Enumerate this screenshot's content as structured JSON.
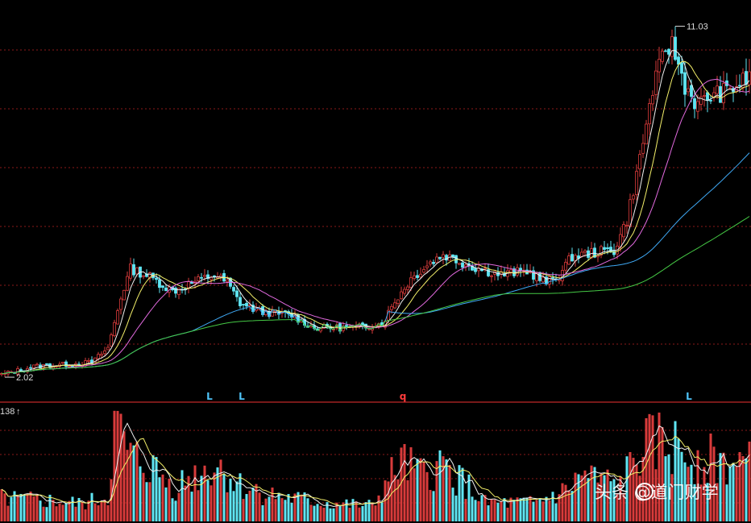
{
  "chart_data": {
    "type": "candlestick",
    "high_label": "11.03",
    "low_label": "2.02",
    "volume_label": "138",
    "markers": [
      {
        "text": "L",
        "color": "#4fc3f7"
      },
      {
        "text": "L",
        "color": "#4fc3f7"
      },
      {
        "text": "q",
        "color": "#ff3b3b"
      },
      {
        "text": "L",
        "color": "#4fc3f7"
      }
    ],
    "price_range": [
      1.9,
      11.3
    ],
    "price_anchors": [
      [
        0,
        2.3
      ],
      [
        10,
        2.5
      ],
      [
        20,
        2.55
      ],
      [
        28,
        2.6
      ],
      [
        33,
        2.95
      ],
      [
        37,
        4.2
      ],
      [
        40,
        4.9
      ],
      [
        46,
        4.7
      ],
      [
        53,
        4.35
      ],
      [
        59,
        4.55
      ],
      [
        66,
        4.75
      ],
      [
        70,
        4.55
      ],
      [
        74,
        4.05
      ],
      [
        80,
        3.85
      ],
      [
        90,
        3.75
      ],
      [
        97,
        3.45
      ],
      [
        110,
        3.45
      ],
      [
        118,
        3.55
      ],
      [
        122,
        4.1
      ],
      [
        127,
        4.65
      ],
      [
        133,
        5.05
      ],
      [
        137,
        5.25
      ],
      [
        146,
        4.95
      ],
      [
        155,
        4.75
      ],
      [
        163,
        4.85
      ],
      [
        169,
        4.55
      ],
      [
        173,
        4.75
      ],
      [
        177,
        5.2
      ],
      [
        184,
        5.3
      ],
      [
        190,
        5.35
      ],
      [
        194,
        6.1
      ],
      [
        198,
        7.6
      ],
      [
        202,
        9.3
      ],
      [
        206,
        10.3
      ],
      [
        208,
        10.4
      ],
      [
        212,
        9.4
      ],
      [
        216,
        8.9
      ],
      [
        220,
        9.15
      ],
      [
        225,
        9.25
      ],
      [
        232,
        9.6
      ]
    ],
    "ma_series": [
      {
        "period": 5,
        "color": "#f0f0f0"
      },
      {
        "period": 10,
        "color": "#f4f06a"
      },
      {
        "period": 20,
        "color": "#e26adf"
      },
      {
        "period": 60,
        "color": "#3fa9f5"
      },
      {
        "period": 120,
        "color": "#45c945"
      }
    ],
    "volume_anchors": [
      [
        0,
        0.22
      ],
      [
        15,
        0.2
      ],
      [
        25,
        0.17
      ],
      [
        33,
        0.24
      ],
      [
        35,
        0.95
      ],
      [
        40,
        0.62
      ],
      [
        46,
        0.55
      ],
      [
        53,
        0.34
      ],
      [
        60,
        0.45
      ],
      [
        67,
        0.56
      ],
      [
        74,
        0.35
      ],
      [
        85,
        0.25
      ],
      [
        100,
        0.18
      ],
      [
        115,
        0.15
      ],
      [
        121,
        0.45
      ],
      [
        124,
        0.58
      ],
      [
        130,
        0.45
      ],
      [
        137,
        0.55
      ],
      [
        142,
        0.42
      ],
      [
        150,
        0.18
      ],
      [
        165,
        0.18
      ],
      [
        175,
        0.3
      ],
      [
        180,
        0.45
      ],
      [
        192,
        0.35
      ],
      [
        198,
        0.7
      ],
      [
        205,
        0.78
      ],
      [
        212,
        0.68
      ],
      [
        220,
        0.6
      ],
      [
        232,
        0.55
      ]
    ],
    "colors": {
      "up": "#d83b3b",
      "down": "#5fe5f2",
      "grid": "#8b1a1a",
      "background": "#000000",
      "volume_ma1": "#f0f0f0",
      "volume_ma2": "#f4f06a"
    }
  },
  "watermark": "头条 @道门财学"
}
